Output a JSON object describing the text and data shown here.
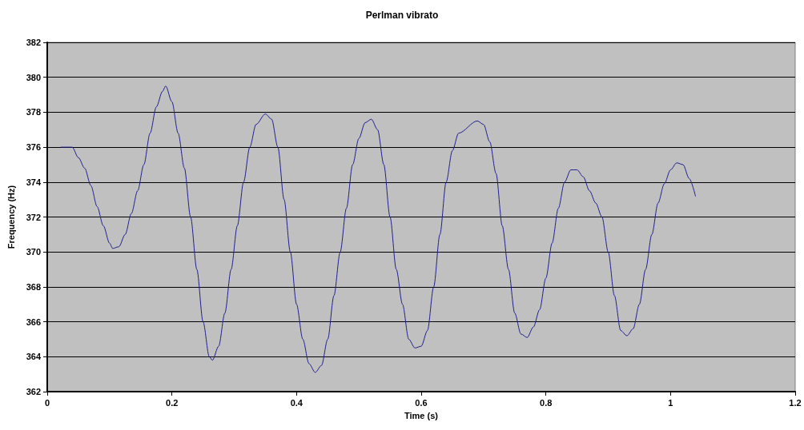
{
  "chart_data": {
    "type": "line",
    "title": "Perlman vibrato",
    "xlabel": "Time (s)",
    "ylabel": "Frequency (Hz)",
    "x": [
      0.022,
      0.04,
      0.05,
      0.06,
      0.07,
      0.08,
      0.09,
      0.1,
      0.105,
      0.115,
      0.125,
      0.135,
      0.145,
      0.155,
      0.165,
      0.175,
      0.185,
      0.19,
      0.2,
      0.21,
      0.22,
      0.23,
      0.24,
      0.25,
      0.26,
      0.265,
      0.275,
      0.285,
      0.295,
      0.305,
      0.315,
      0.325,
      0.335,
      0.35,
      0.36,
      0.37,
      0.38,
      0.39,
      0.4,
      0.41,
      0.42,
      0.43,
      0.44,
      0.45,
      0.46,
      0.47,
      0.48,
      0.49,
      0.5,
      0.51,
      0.52,
      0.53,
      0.54,
      0.55,
      0.56,
      0.57,
      0.58,
      0.59,
      0.6,
      0.61,
      0.62,
      0.63,
      0.64,
      0.65,
      0.66,
      0.69,
      0.7,
      0.71,
      0.72,
      0.73,
      0.74,
      0.75,
      0.76,
      0.77,
      0.78,
      0.79,
      0.8,
      0.81,
      0.82,
      0.83,
      0.84,
      0.85,
      0.86,
      0.87,
      0.88,
      0.89,
      0.9,
      0.91,
      0.92,
      0.93,
      0.94,
      0.95,
      0.96,
      0.97,
      0.98,
      0.99,
      1.0,
      1.01,
      1.02,
      1.03,
      1.04
    ],
    "series": [
      {
        "color": "#1f1f8f",
        "values": [
          376.0,
          376.0,
          375.4,
          374.8,
          373.8,
          372.6,
          371.5,
          370.5,
          370.2,
          370.3,
          371.0,
          372.2,
          373.5,
          375.0,
          376.8,
          378.3,
          379.2,
          379.5,
          378.6,
          376.8,
          374.8,
          372.0,
          369.0,
          366.0,
          364.0,
          363.8,
          364.6,
          366.5,
          369.0,
          371.5,
          374.0,
          376.0,
          377.3,
          377.9,
          377.6,
          376.0,
          373.0,
          370.0,
          367.0,
          365.0,
          363.6,
          363.1,
          363.5,
          365.0,
          367.5,
          370.0,
          372.5,
          375.0,
          376.5,
          377.4,
          377.6,
          377.0,
          375.0,
          372.0,
          369.0,
          367.0,
          365.0,
          364.5,
          364.6,
          365.5,
          368.0,
          371.0,
          374.0,
          375.8,
          376.8,
          377.5,
          377.3,
          376.3,
          374.5,
          371.5,
          369.0,
          366.5,
          365.3,
          365.1,
          365.7,
          366.7,
          368.5,
          370.5,
          372.5,
          374.0,
          374.7,
          374.7,
          374.3,
          373.5,
          372.8,
          372.0,
          370.0,
          367.5,
          365.5,
          365.2,
          365.6,
          367.0,
          369.0,
          371.0,
          372.8,
          373.9,
          374.7,
          375.1,
          375.0,
          374.2,
          373.2
        ]
      }
    ],
    "xlim": [
      0,
      1.2
    ],
    "xticks": [
      0,
      0.2,
      0.4,
      0.6,
      0.8,
      1,
      1.2
    ],
    "ylim": [
      362,
      382
    ],
    "yticks": [
      362,
      364,
      366,
      368,
      370,
      372,
      374,
      376,
      378,
      380,
      382
    ],
    "grid": "y",
    "marker": "none",
    "line_style": "solid"
  }
}
